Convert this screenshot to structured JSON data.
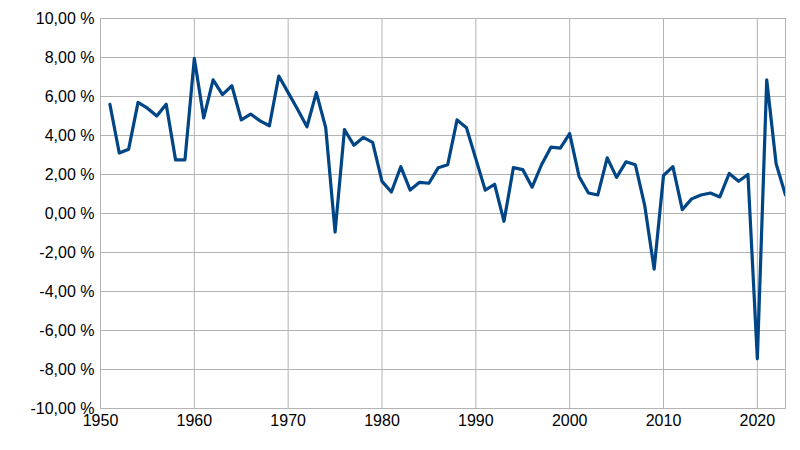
{
  "chart_data": {
    "type": "line",
    "x": [
      1951,
      1952,
      1953,
      1954,
      1955,
      1956,
      1957,
      1958,
      1959,
      1960,
      1961,
      1962,
      1963,
      1964,
      1965,
      1966,
      1967,
      1968,
      1969,
      1970,
      1971,
      1972,
      1973,
      1974,
      1975,
      1976,
      1977,
      1978,
      1979,
      1980,
      1981,
      1982,
      1983,
      1984,
      1985,
      1986,
      1987,
      1988,
      1989,
      1990,
      1991,
      1992,
      1993,
      1994,
      1995,
      1996,
      1997,
      1998,
      1999,
      2000,
      2001,
      2002,
      2003,
      2004,
      2005,
      2006,
      2007,
      2008,
      2009,
      2010,
      2011,
      2012,
      2013,
      2014,
      2015,
      2016,
      2017,
      2018,
      2019,
      2020,
      2021,
      2022,
      2023
    ],
    "values": [
      5.6,
      3.1,
      3.3,
      5.7,
      5.4,
      5.0,
      5.6,
      2.75,
      2.75,
      7.95,
      4.9,
      6.85,
      6.1,
      6.55,
      4.8,
      5.1,
      4.75,
      4.5,
      7.05,
      6.2,
      5.35,
      4.45,
      6.2,
      4.4,
      -0.95,
      4.3,
      3.5,
      3.9,
      3.65,
      1.65,
      1.1,
      2.4,
      1.2,
      1.6,
      1.55,
      2.35,
      2.5,
      4.8,
      4.4,
      2.8,
      1.2,
      1.5,
      -0.4,
      2.35,
      2.25,
      1.35,
      2.5,
      3.4,
      3.35,
      4.1,
      1.9,
      1.05,
      0.95,
      2.85,
      1.85,
      2.65,
      2.5,
      0.4,
      -2.85,
      1.95,
      2.4,
      0.2,
      0.75,
      0.95,
      1.05,
      0.85,
      2.05,
      1.65,
      2.0,
      -7.45,
      6.85,
      2.55,
      0.95
    ],
    "color": "#004586",
    "xlim": [
      1950,
      2023
    ],
    "xticks": [
      1950,
      1960,
      1970,
      1980,
      1990,
      2000,
      2010,
      2020
    ],
    "ylim": [
      -10,
      10
    ],
    "yticks": [
      {
        "value": -10,
        "label": "-10,00 %"
      },
      {
        "value": -8,
        "label": "-8,00 %"
      },
      {
        "value": -6,
        "label": "-6,00 %"
      },
      {
        "value": -4,
        "label": "-4,00 %"
      },
      {
        "value": -2,
        "label": "-2,00 %"
      },
      {
        "value": 0,
        "label": "0,00 %"
      },
      {
        "value": 2,
        "label": "2,00 %"
      },
      {
        "value": 4,
        "label": "4,00 %"
      },
      {
        "value": 6,
        "label": "6,00 %"
      },
      {
        "value": 8,
        "label": "8,00 %"
      },
      {
        "value": 10,
        "label": "10,00 %"
      }
    ],
    "grid": true
  }
}
